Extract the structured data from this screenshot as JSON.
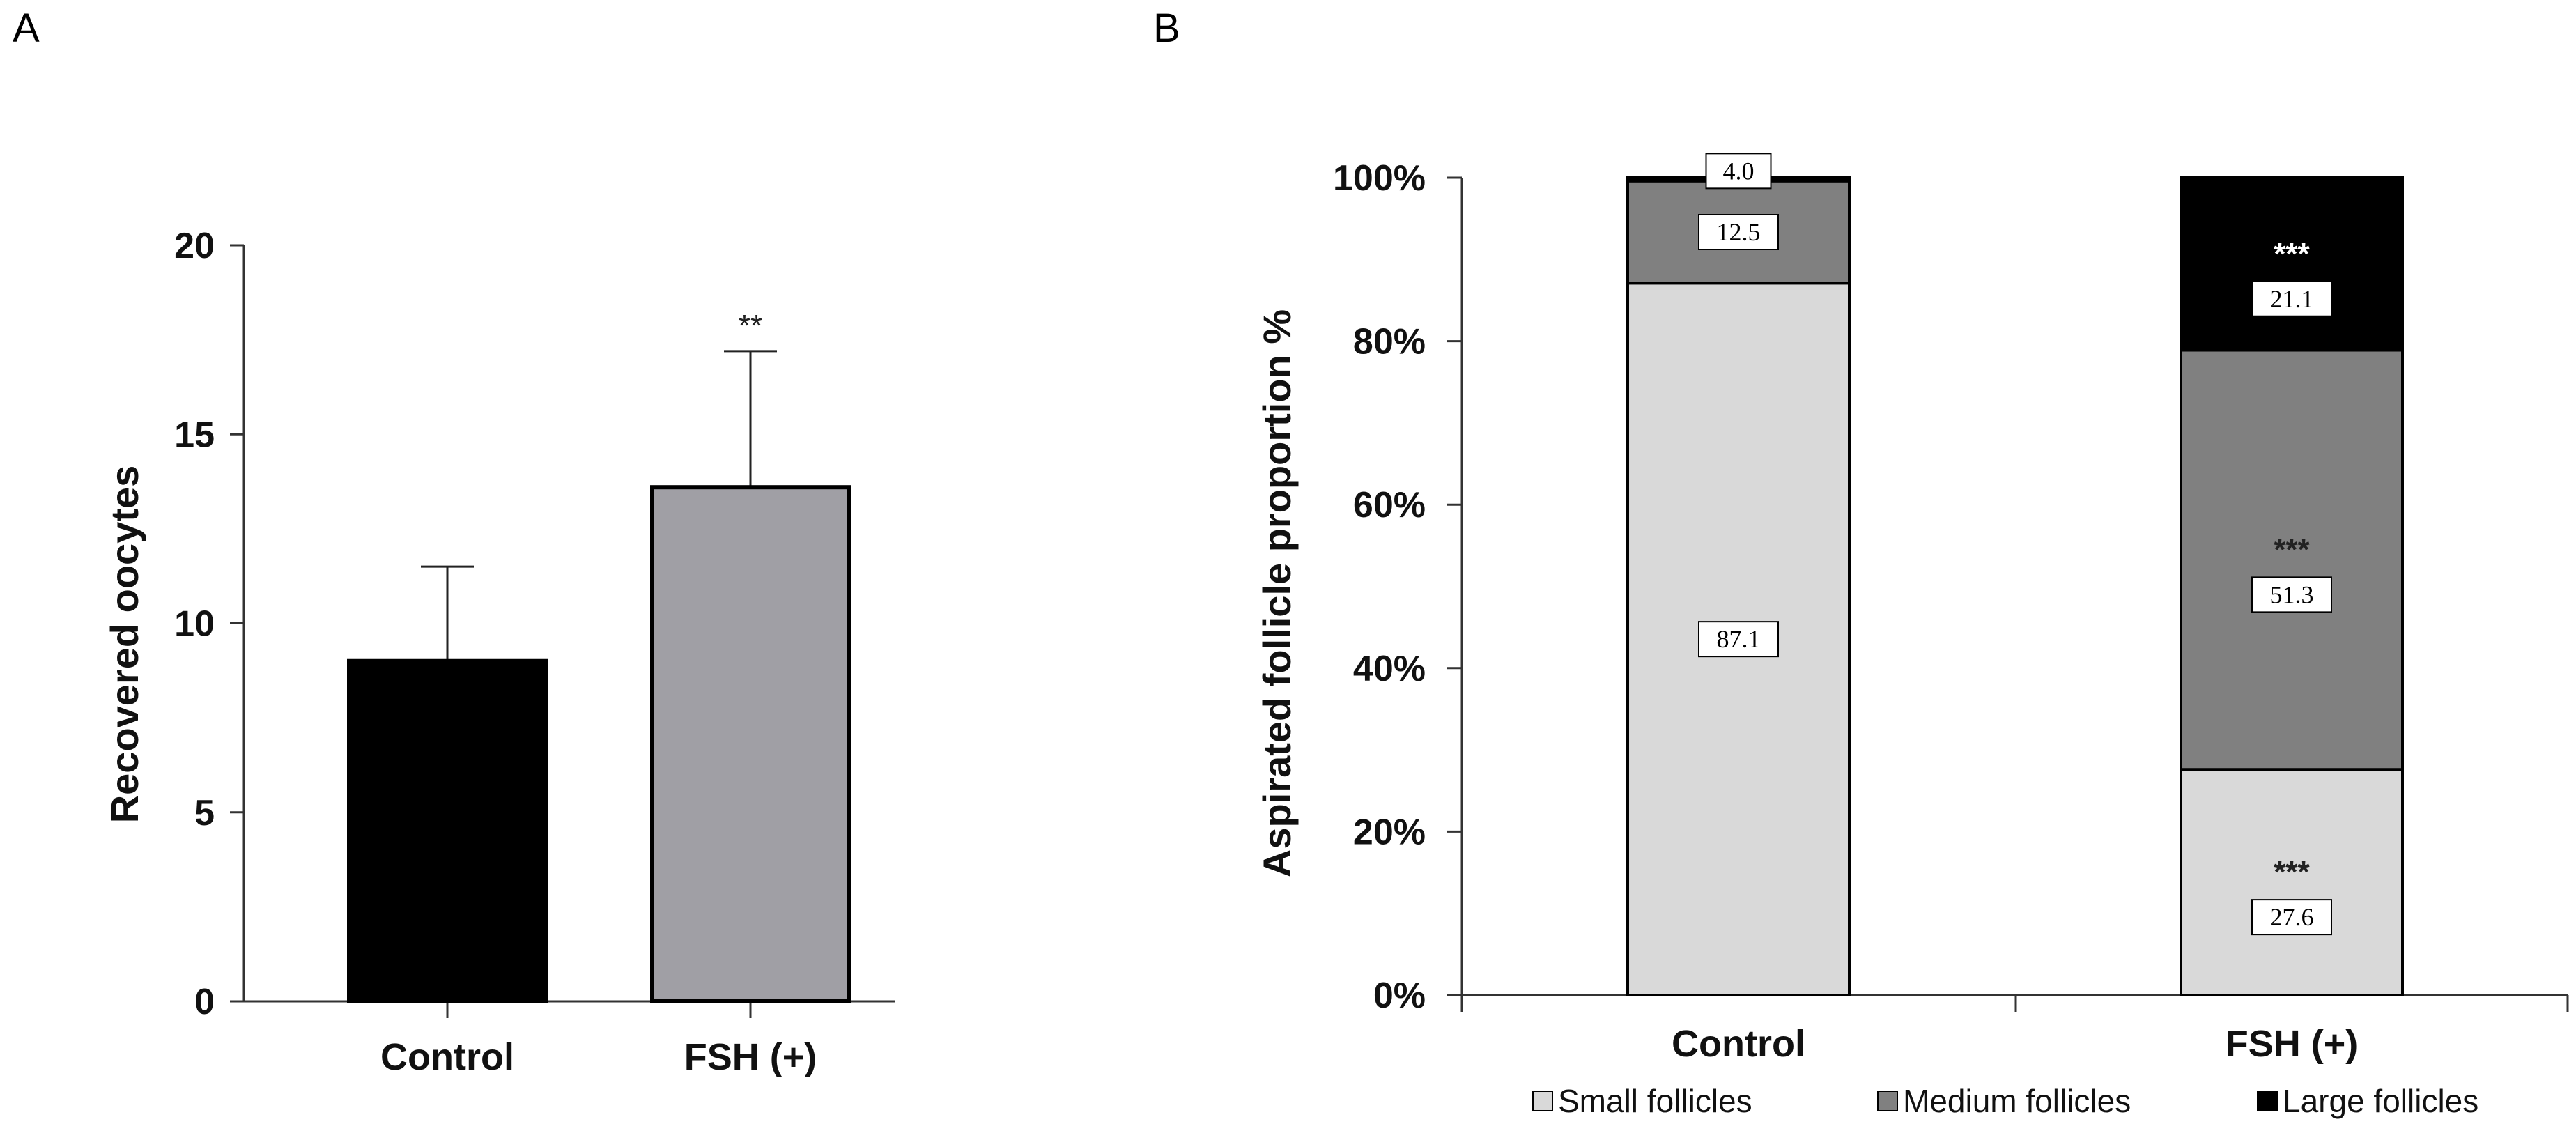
{
  "chart_data": [
    {
      "panel": "A",
      "type": "bar",
      "categories": [
        "Control",
        "FSH (+)"
      ],
      "values": [
        9.0,
        13.6
      ],
      "error_upper": [
        11.5,
        17.2
      ],
      "significance": [
        "",
        "**"
      ],
      "colors": [
        "#000000",
        "#a09fa5"
      ],
      "title": "",
      "xlabel": "",
      "ylabel": "Recovered oocytes",
      "ylim": [
        0,
        20
      ],
      "yticks": [
        0,
        5,
        10,
        15,
        20
      ]
    },
    {
      "panel": "B",
      "type": "bar",
      "stacked": true,
      "categories": [
        "Control",
        "FSH (+)"
      ],
      "ylabel": "Aspirated follicle proportion %",
      "ylim": [
        0,
        100
      ],
      "ytick_labels": [
        "0%",
        "20%",
        "40%",
        "60%",
        "80%",
        "100%"
      ],
      "series": [
        {
          "name": "Small follicles",
          "color": "#d9d9d9",
          "values": [
            87.1,
            27.6
          ],
          "labels": [
            "87.1",
            "27.6"
          ],
          "significance": [
            "",
            "***"
          ]
        },
        {
          "name": "Medium follicles",
          "color": "#808080",
          "values": [
            12.5,
            51.3
          ],
          "labels": [
            "12.5",
            "51.3"
          ],
          "significance": [
            "",
            "***"
          ]
        },
        {
          "name": "Large follicles",
          "color": "#000000",
          "values": [
            4.0,
            21.1
          ],
          "labels": [
            "4.0",
            "21.1"
          ],
          "significance": [
            "",
            "***"
          ]
        }
      ],
      "legend_position": "bottom"
    }
  ]
}
